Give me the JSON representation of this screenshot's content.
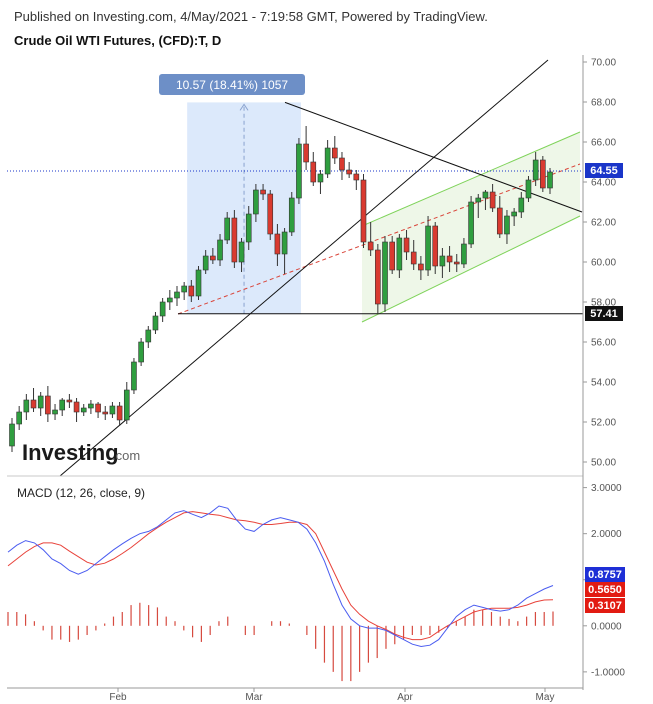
{
  "header": {
    "published": "Published on Investing.com, 4/May/2021 - 7:19:58 GMT, Powered by TradingView.",
    "title": "Crude Oil WTI Futures, (CFD):T, D"
  },
  "watermark": {
    "brand": "Investing",
    "suffix": ".com"
  },
  "colors": {
    "up": "#2f9e3f",
    "down": "#d93a30",
    "macd_line": "#4a5cf0",
    "signal_line": "#e8423a",
    "measure_fill": "#dce9fb",
    "measure_label_bg": "#6d8fc7",
    "channel_fill": "#eef7e8",
    "channel_line": "#7fd35a",
    "price_dotted": "#1a35c9",
    "support_label_bg": "#111111"
  },
  "price_chart": {
    "y_ticks": [
      "50.00",
      "52.00",
      "54.00",
      "56.00",
      "58.00",
      "60.00",
      "62.00",
      "64.00",
      "66.00",
      "68.00",
      "70.00"
    ],
    "measure_label": "10.57 (18.41%) 1057",
    "current_price_label": "64.55",
    "support_label": "57.41"
  },
  "macd_chart": {
    "title": "MACD (12, 26, close, 9)",
    "y_ticks": [
      "-1.0000",
      "0.0000",
      "1.0000",
      "2.0000",
      "3.0000"
    ],
    "labels": {
      "macd": "0.8757",
      "signal": "0.5650",
      "hist": "0.3107"
    }
  },
  "x_axis": {
    "labels": [
      "Feb",
      "Mar",
      "Apr",
      "May"
    ]
  },
  "chart_data": {
    "type": "candlestick",
    "title": "Crude Oil WTI Futures, (CFD):T, D",
    "ylim": [
      49.5,
      70.2
    ],
    "candles": [
      [
        50.8,
        52.2,
        50.5,
        51.9
      ],
      [
        51.9,
        52.8,
        51.6,
        52.5
      ],
      [
        52.5,
        53.4,
        52.1,
        53.1
      ],
      [
        53.1,
        53.7,
        52.5,
        52.7
      ],
      [
        52.7,
        53.5,
        52.3,
        53.3
      ],
      [
        53.3,
        53.8,
        52.0,
        52.4
      ],
      [
        52.4,
        52.9,
        52.1,
        52.6
      ],
      [
        52.6,
        53.2,
        52.3,
        53.1
      ],
      [
        53.1,
        53.4,
        52.7,
        53.0
      ],
      [
        53.0,
        53.2,
        52.0,
        52.5
      ],
      [
        52.5,
        52.9,
        52.3,
        52.7
      ],
      [
        52.7,
        53.1,
        52.4,
        52.9
      ],
      [
        52.9,
        53.0,
        52.2,
        52.5
      ],
      [
        52.5,
        52.8,
        52.1,
        52.4
      ],
      [
        52.4,
        53.0,
        52.2,
        52.8
      ],
      [
        52.8,
        53.0,
        51.8,
        52.1
      ],
      [
        52.1,
        54.0,
        51.9,
        53.6
      ],
      [
        53.6,
        55.2,
        53.4,
        55.0
      ],
      [
        55.0,
        56.2,
        54.8,
        56.0
      ],
      [
        56.0,
        56.8,
        55.7,
        56.6
      ],
      [
        56.6,
        57.5,
        56.4,
        57.3
      ],
      [
        57.3,
        58.2,
        57.0,
        58.0
      ],
      [
        58.0,
        58.6,
        57.6,
        58.2
      ],
      [
        58.2,
        58.8,
        57.8,
        58.5
      ],
      [
        58.5,
        59.0,
        58.1,
        58.8
      ],
      [
        58.8,
        59.1,
        58.0,
        58.3
      ],
      [
        58.3,
        59.8,
        58.1,
        59.6
      ],
      [
        59.6,
        60.6,
        59.4,
        60.3
      ],
      [
        60.3,
        60.7,
        59.9,
        60.1
      ],
      [
        60.1,
        61.4,
        59.8,
        61.1
      ],
      [
        61.1,
        62.5,
        60.9,
        62.2
      ],
      [
        62.2,
        62.6,
        59.7,
        60.0
      ],
      [
        60.0,
        61.2,
        59.5,
        61.0
      ],
      [
        61.0,
        62.8,
        60.6,
        62.4
      ],
      [
        62.4,
        63.9,
        62.0,
        63.6
      ],
      [
        63.6,
        63.9,
        63.1,
        63.4
      ],
      [
        63.4,
        63.6,
        61.1,
        61.4
      ],
      [
        61.4,
        61.9,
        59.8,
        60.4
      ],
      [
        60.4,
        61.7,
        59.4,
        61.5
      ],
      [
        61.5,
        63.5,
        61.3,
        63.2
      ],
      [
        63.2,
        66.2,
        62.9,
        65.9
      ],
      [
        65.9,
        66.8,
        64.6,
        65.0
      ],
      [
        65.0,
        65.5,
        63.8,
        64.0
      ],
      [
        64.0,
        64.6,
        63.4,
        64.4
      ],
      [
        64.4,
        66.1,
        64.2,
        65.7
      ],
      [
        65.7,
        66.3,
        64.9,
        65.2
      ],
      [
        65.2,
        65.5,
        64.1,
        64.6
      ],
      [
        64.6,
        65.0,
        64.2,
        64.4
      ],
      [
        64.4,
        64.6,
        63.6,
        64.1
      ],
      [
        64.1,
        64.4,
        60.7,
        61.0
      ],
      [
        61.0,
        62.0,
        60.3,
        60.6
      ],
      [
        60.6,
        60.9,
        57.4,
        57.9
      ],
      [
        57.9,
        61.3,
        57.5,
        61.0
      ],
      [
        61.0,
        61.3,
        59.4,
        59.6
      ],
      [
        59.6,
        61.4,
        59.2,
        61.2
      ],
      [
        61.2,
        61.6,
        60.1,
        60.5
      ],
      [
        60.5,
        61.1,
        59.6,
        59.9
      ],
      [
        59.9,
        60.3,
        59.1,
        59.6
      ],
      [
        59.6,
        62.3,
        59.3,
        61.8
      ],
      [
        61.8,
        62.0,
        59.4,
        59.8
      ],
      [
        59.8,
        60.7,
        59.2,
        60.3
      ],
      [
        60.3,
        60.8,
        59.5,
        60.0
      ],
      [
        60.0,
        60.4,
        59.5,
        59.9
      ],
      [
        59.9,
        61.2,
        59.7,
        60.9
      ],
      [
        60.9,
        63.3,
        60.7,
        63.0
      ],
      [
        63.0,
        63.4,
        62.2,
        63.2
      ],
      [
        63.2,
        63.6,
        62.6,
        63.5
      ],
      [
        63.5,
        63.9,
        62.5,
        62.7
      ],
      [
        62.7,
        63.3,
        61.2,
        61.4
      ],
      [
        61.4,
        62.6,
        60.9,
        62.3
      ],
      [
        62.3,
        62.7,
        61.8,
        62.5
      ],
      [
        62.5,
        63.5,
        62.2,
        63.2
      ],
      [
        63.2,
        64.3,
        63.0,
        64.1
      ],
      [
        64.1,
        65.5,
        63.8,
        65.1
      ],
      [
        65.1,
        65.3,
        63.5,
        63.7
      ],
      [
        63.7,
        64.7,
        63.4,
        64.5
      ]
    ],
    "measure": {
      "high": 67.98,
      "low": 57.41,
      "label": "10.57 (18.41%) 1057"
    },
    "support": 57.41,
    "current_price": 64.55,
    "macd": {
      "ylim": [
        -1.35,
        3.1
      ],
      "macd": [
        1.6,
        1.75,
        1.85,
        1.8,
        1.65,
        1.45,
        1.35,
        1.2,
        1.12,
        1.2,
        1.35,
        1.5,
        1.65,
        1.78,
        1.9,
        2.0,
        2.05,
        2.15,
        2.3,
        2.45,
        2.5,
        2.42,
        2.35,
        2.45,
        2.6,
        2.55,
        2.3,
        2.1,
        2.05,
        2.2,
        2.3,
        2.35,
        2.3,
        2.25,
        2.1,
        1.8,
        1.4,
        0.9,
        0.45,
        0.15,
        0.0,
        -0.05,
        -0.05,
        -0.1,
        -0.2,
        -0.3,
        -0.4,
        -0.45,
        -0.42,
        -0.3,
        -0.05,
        0.2,
        0.35,
        0.45,
        0.4,
        0.35,
        0.32,
        0.35,
        0.45,
        0.6,
        0.7,
        0.8,
        0.8757
      ],
      "signal": [
        1.3,
        1.45,
        1.6,
        1.72,
        1.8,
        1.8,
        1.75,
        1.62,
        1.5,
        1.38,
        1.32,
        1.36,
        1.45,
        1.57,
        1.7,
        1.85,
        2.0,
        2.13,
        2.25,
        2.35,
        2.45,
        2.48,
        2.45,
        2.42,
        2.4,
        2.35,
        2.3,
        2.28,
        2.25,
        2.2,
        2.2,
        2.22,
        2.25,
        2.25,
        2.2,
        2.0,
        1.6,
        1.2,
        0.8,
        0.45,
        0.25,
        0.1,
        0.0,
        -0.08,
        -0.18,
        -0.25,
        -0.3,
        -0.3,
        -0.25,
        -0.12,
        0.0,
        0.1,
        0.2,
        0.3,
        0.35,
        0.38,
        0.38,
        0.38,
        0.4,
        0.45,
        0.52,
        0.56,
        0.565
      ],
      "hist": [
        0.3,
        0.3,
        0.25,
        0.1,
        -0.1,
        -0.3,
        -0.3,
        -0.35,
        -0.3,
        -0.2,
        -0.1,
        0.05,
        0.2,
        0.3,
        0.45,
        0.5,
        0.45,
        0.4,
        0.2,
        0.1,
        -0.1,
        -0.25,
        -0.35,
        -0.2,
        0.1,
        0.2,
        0.0,
        -0.2,
        -0.2,
        0.0,
        0.1,
        0.1,
        0.05,
        0.0,
        -0.2,
        -0.5,
        -0.8,
        -1.0,
        -1.2,
        -1.2,
        -1.0,
        -0.8,
        -0.7,
        -0.5,
        -0.4,
        -0.3,
        -0.2,
        -0.2,
        -0.2,
        -0.15,
        -0.05,
        0.1,
        0.2,
        0.35,
        0.35,
        0.3,
        0.2,
        0.15,
        0.1,
        0.2,
        0.3,
        0.3,
        0.3107
      ]
    }
  }
}
